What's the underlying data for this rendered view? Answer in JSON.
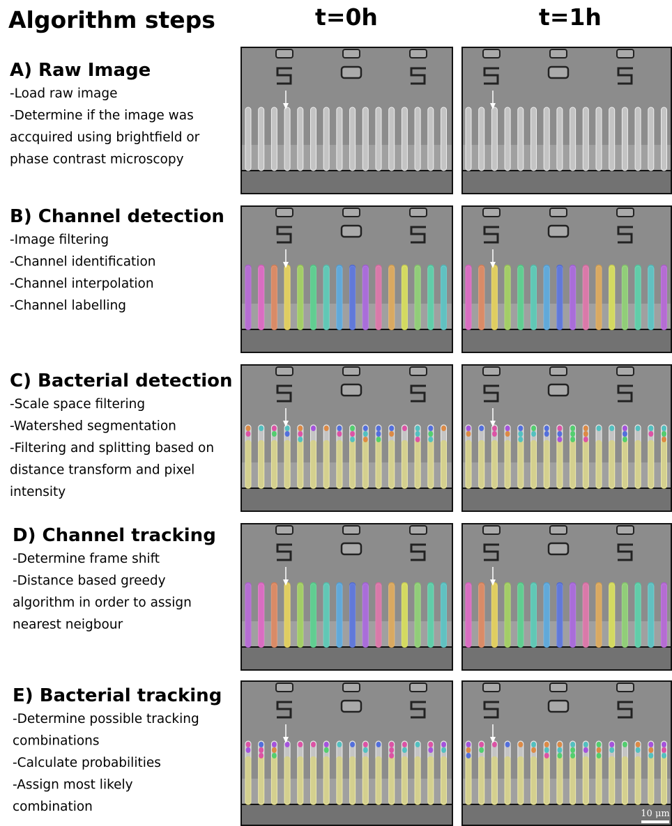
{
  "header": {
    "title": "Algorithm steps",
    "columns": [
      "t=0h",
      "t=1h"
    ]
  },
  "steps": [
    {
      "title": "A) Raw Image",
      "lines": [
        "-Load raw image",
        "-Determine if the image was",
        "accquired using brightfield or",
        "phase contrast microscopy"
      ]
    },
    {
      "title": "B) Channel detection",
      "lines": [
        "-Image filtering",
        "-Channel identification",
        "-Channel interpolation",
        "-Channel labelling"
      ]
    },
    {
      "title": "C) Bacterial detection",
      "lines": [
        "-Scale space filtering",
        "-Watershed segmentation",
        "-Filtering and splitting based on",
        "distance transform and pixel",
        "intensity"
      ]
    },
    {
      "title": "D) Channel tracking",
      "lines": [
        "-Determine frame shift",
        "-Distance based greedy",
        "algorithm in order to assign",
        "nearest neigbour"
      ]
    },
    {
      "title": "E) Bacterial tracking",
      "lines": [
        "-Determine possible tracking",
        "combinations",
        "-Calculate probabilities",
        "-Assign most likely",
        "combination"
      ]
    }
  ],
  "scale_bar": "10 μm"
}
